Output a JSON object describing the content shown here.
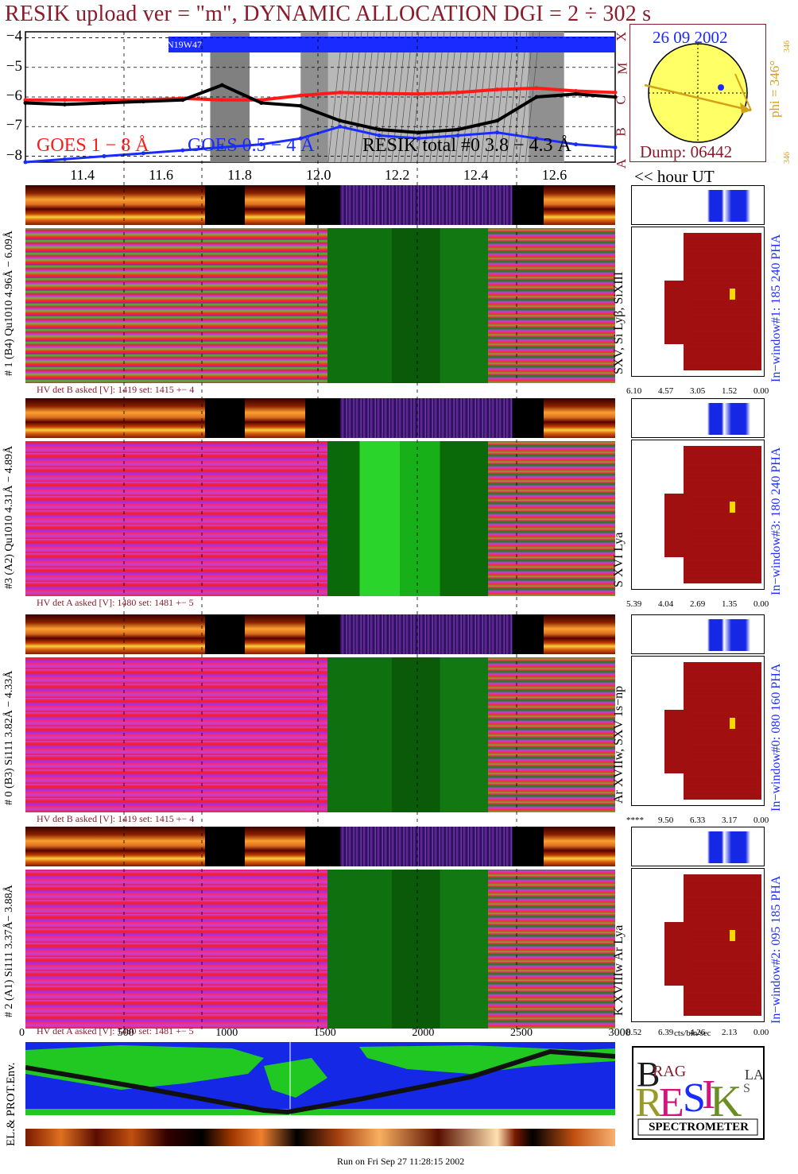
{
  "title": "RESIK upload ver = \"m\", DYNAMIC ALLOCATION  DGI =   2 ÷ 302 s",
  "goes_chart": {
    "y_ticks": [
      "−4",
      "−5",
      "−6",
      "−7",
      "−8"
    ],
    "class_letters": [
      "X",
      "M",
      "C",
      "B",
      "A"
    ],
    "flare_label": "N19W47",
    "legend_goes18": "GOES 1 − 8 Å",
    "legend_goes054": "GOES 0.5 − 4 Å",
    "legend_resik": "RESIK total #0  3.8 − 4.3 Å",
    "colors": {
      "goes18": "#ff1a1a",
      "goes054": "#1a2bff",
      "resik": "#000000",
      "flare_band": "#1a2bff",
      "title": "#8b1a2b"
    }
  },
  "hour_axis": {
    "ticks": [
      "11.4",
      "11.6",
      "11.8",
      "12.0",
      "12.2",
      "12.4",
      "12.6"
    ],
    "label": "<< hour UT"
  },
  "sun_panel": {
    "date": "26 09 2002",
    "phi_label": "phi = 346°",
    "phi_small_top": "346",
    "phi_small_bottom": "346",
    "dump": "Dump: 06442"
  },
  "detectors": [
    {
      "left_label": "# 1 (B4) Qu1010 4.96Å − 6.09Å",
      "line_label": "SXV, Si Lyβ, SiXIII",
      "hv_text": "HV det B asked [V]:  1419 set:  1415  +−   4",
      "window_label": "In−window#1:  185 240 PHA",
      "scale": [
        "6.10",
        "4.57",
        "3.05",
        "1.52",
        "0.00"
      ]
    },
    {
      "left_label": "#3 (A2) Qu1010  4.31Å − 4.89Å",
      "line_label": "S XVI Lya",
      "hv_text": "HV det A asked [V]:  1480 set:  1481  +−   5",
      "window_label": "In−window#3:  180 240 PHA",
      "scale": [
        "5.39",
        "4.04",
        "2.69",
        "1.35",
        "0.00"
      ]
    },
    {
      "left_label": "# 0 (B3) Si111  3.82Å − 4.33Å",
      "line_label": "Ar XVIIw, SXV 1s−np",
      "hv_text": "HV det B asked [V]:  1419 set:  1415  +−   4",
      "window_label": "In−window#0:  080 160 PHA",
      "scale": [
        "****",
        "9.50",
        "6.33",
        "3.17",
        "0.00"
      ]
    },
    {
      "left_label": "# 2 (A1) Si111  3.37Å− 3.88Å",
      "line_label": "K XVIIIw  Ar Lya",
      "hv_text": "HV det A asked [V]:  1480 set:  1481  +−   5",
      "window_label": "In−window#2:  095 185 PHA",
      "scale": [
        "8.52",
        "6.39",
        "4.26",
        "2.13",
        "0.00"
      ]
    }
  ],
  "bottom_axis": {
    "ticks": [
      "0",
      "500",
      "1000",
      "1500",
      "2000",
      "2500",
      "3000"
    ],
    "unit": "cts/bin/sec"
  },
  "env_label": "EL.& PROT.Env.",
  "logo": {
    "letters": "RESIK",
    "word_bragg": "BRAGG",
    "word_solar": "SOLAR",
    "subtitle": "SPECTROMETER"
  },
  "footer": "Run on Fri Sep 27 11:28:15 2002",
  "chart_data": {
    "type": "line",
    "title": "RESIK upload ver = \"m\", DYNAMIC ALLOCATION  DGI =   2 ÷ 302 s",
    "xlabel": "hour UT",
    "x": [
      11.25,
      11.35,
      11.45,
      11.55,
      11.65,
      11.75,
      11.85,
      11.95,
      12.05,
      12.15,
      12.25,
      12.35,
      12.45,
      12.55,
      12.65,
      12.75
    ],
    "xlim": [
      11.25,
      12.75
    ],
    "ylim": [
      -8.2,
      -3.8
    ],
    "series": [
      {
        "name": "GOES 1 − 8 Å",
        "values": [
          -6.1,
          -6.1,
          -6.1,
          -6.1,
          -6.05,
          -6.1,
          -6.1,
          -5.95,
          -5.85,
          -5.88,
          -5.9,
          -5.85,
          -5.75,
          -5.7,
          -5.8,
          -5.85
        ]
      },
      {
        "name": "GOES 0.5 − 4 Å",
        "values": [
          -8.2,
          -8.1,
          -8.0,
          -7.9,
          -7.8,
          -7.7,
          -7.6,
          -7.4,
          -7.0,
          -7.3,
          -7.4,
          -7.3,
          -7.2,
          -7.4,
          -7.6,
          -7.7
        ]
      },
      {
        "name": "RESIK total #0  3.8 − 4.3 Å",
        "values": [
          -6.2,
          -6.25,
          -6.2,
          -6.15,
          -6.1,
          -5.6,
          -6.2,
          -6.3,
          -6.8,
          -7.1,
          -7.2,
          -7.1,
          -6.8,
          -6.0,
          -5.9,
          -6.0
        ]
      }
    ],
    "shaded_intervals_hours": [
      [
        11.72,
        11.82
      ],
      [
        11.95,
        12.02
      ],
      [
        12.02,
        12.53
      ],
      [
        12.53,
        12.62
      ]
    ]
  }
}
